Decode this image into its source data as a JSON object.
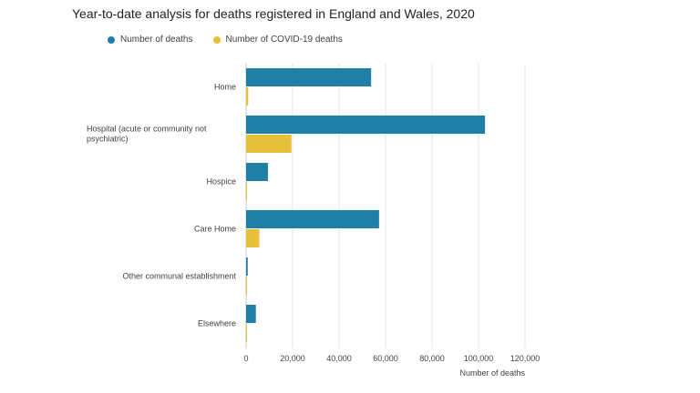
{
  "chart_data": {
    "type": "bar",
    "orientation": "horizontal",
    "title": "Year-to-date analysis for deaths registered in England and Wales, 2020",
    "categories": [
      "Home",
      "Hospital (acute or community not psychiatric)",
      "Hospice",
      "Care Home",
      "Other communal establishment",
      "Elsewhere"
    ],
    "category_lines": [
      [
        "Home"
      ],
      [
        "Hospital (acute or community not",
        "psychiatric)"
      ],
      [
        "Hospice"
      ],
      [
        "Care Home"
      ],
      [
        "Other communal establishment"
      ],
      [
        "Elsewhere"
      ]
    ],
    "series": [
      {
        "name": "Number of deaths",
        "color": "#1f7fa6",
        "values": [
          53800,
          102800,
          9400,
          57200,
          700,
          4200
        ]
      },
      {
        "name": "Number of COVID-19 deaths",
        "color": "#e6c03b",
        "values": [
          900,
          19500,
          300,
          5700,
          100,
          200
        ]
      }
    ],
    "xlabel": "Number of deaths",
    "ylabel": "",
    "xlim": [
      0,
      120000
    ],
    "xticks": [
      0,
      20000,
      40000,
      60000,
      80000,
      100000,
      120000
    ],
    "xtick_labels": [
      "0",
      "20,000",
      "40,000",
      "60,000",
      "80,000",
      "100,000",
      "120,000"
    ],
    "grid": true,
    "legend_position": "top-left"
  },
  "legend": {
    "items": [
      {
        "label": "Number of deaths",
        "color": "#1f7fa6"
      },
      {
        "label": "Number of COVID-19 deaths",
        "color": "#e6c03b"
      }
    ]
  }
}
